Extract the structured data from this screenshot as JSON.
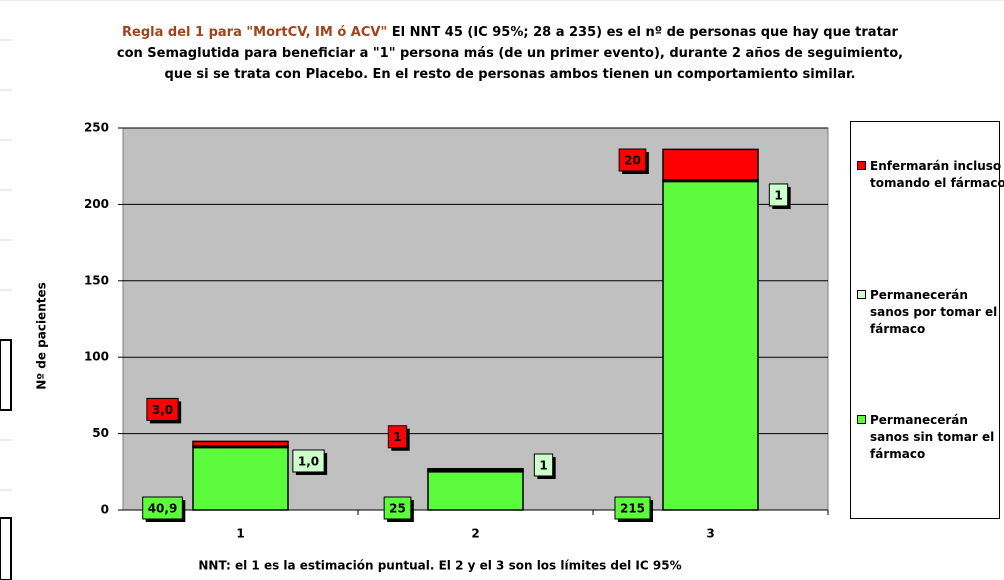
{
  "chart_data": {
    "type": "stacked-bar",
    "title_prefix": "Regla del 1 para \"MortCV, IM ó ACV\"",
    "title_lines": [
      "El NNT 45 (IC 95%; 28 a 235) es el nº de personas que hay que tratar",
      "con Semaglutida para beneficiar a \"1\" persona más (de un primer evento), durante 2 años de seguimiento,",
      "que si se trata con Placebo. En el resto de personas ambos tienen un comportamiento similar."
    ],
    "ylabel": "Nº de pacientes",
    "xlabel": "NNT: el 1 es la estimación puntual. El 2 y el 3 son los límites del IC 95%",
    "categories": [
      "1",
      "2",
      "3"
    ],
    "series": [
      {
        "name": "Permanecerán sanos sin tomar el fármaco",
        "color": "#5cfc3c",
        "values": [
          40.9,
          25,
          215
        ],
        "value_labels": [
          "40,9",
          "25",
          "215"
        ]
      },
      {
        "name": "Permanecerán sanos por tomar el fármaco",
        "color": "#ccffcc",
        "values": [
          1.0,
          1,
          1
        ],
        "value_labels": [
          "1,0",
          "1",
          "1"
        ]
      },
      {
        "name": "Enfermarán incluso tomando el fármaco",
        "color": "#ff0000",
        "values": [
          3.0,
          1,
          20
        ],
        "value_labels": [
          "3,0",
          "1",
          "20"
        ]
      }
    ],
    "ylim": [
      0,
      250
    ],
    "yticks": [
      0,
      50,
      100,
      150,
      200,
      250
    ],
    "grid": true
  }
}
